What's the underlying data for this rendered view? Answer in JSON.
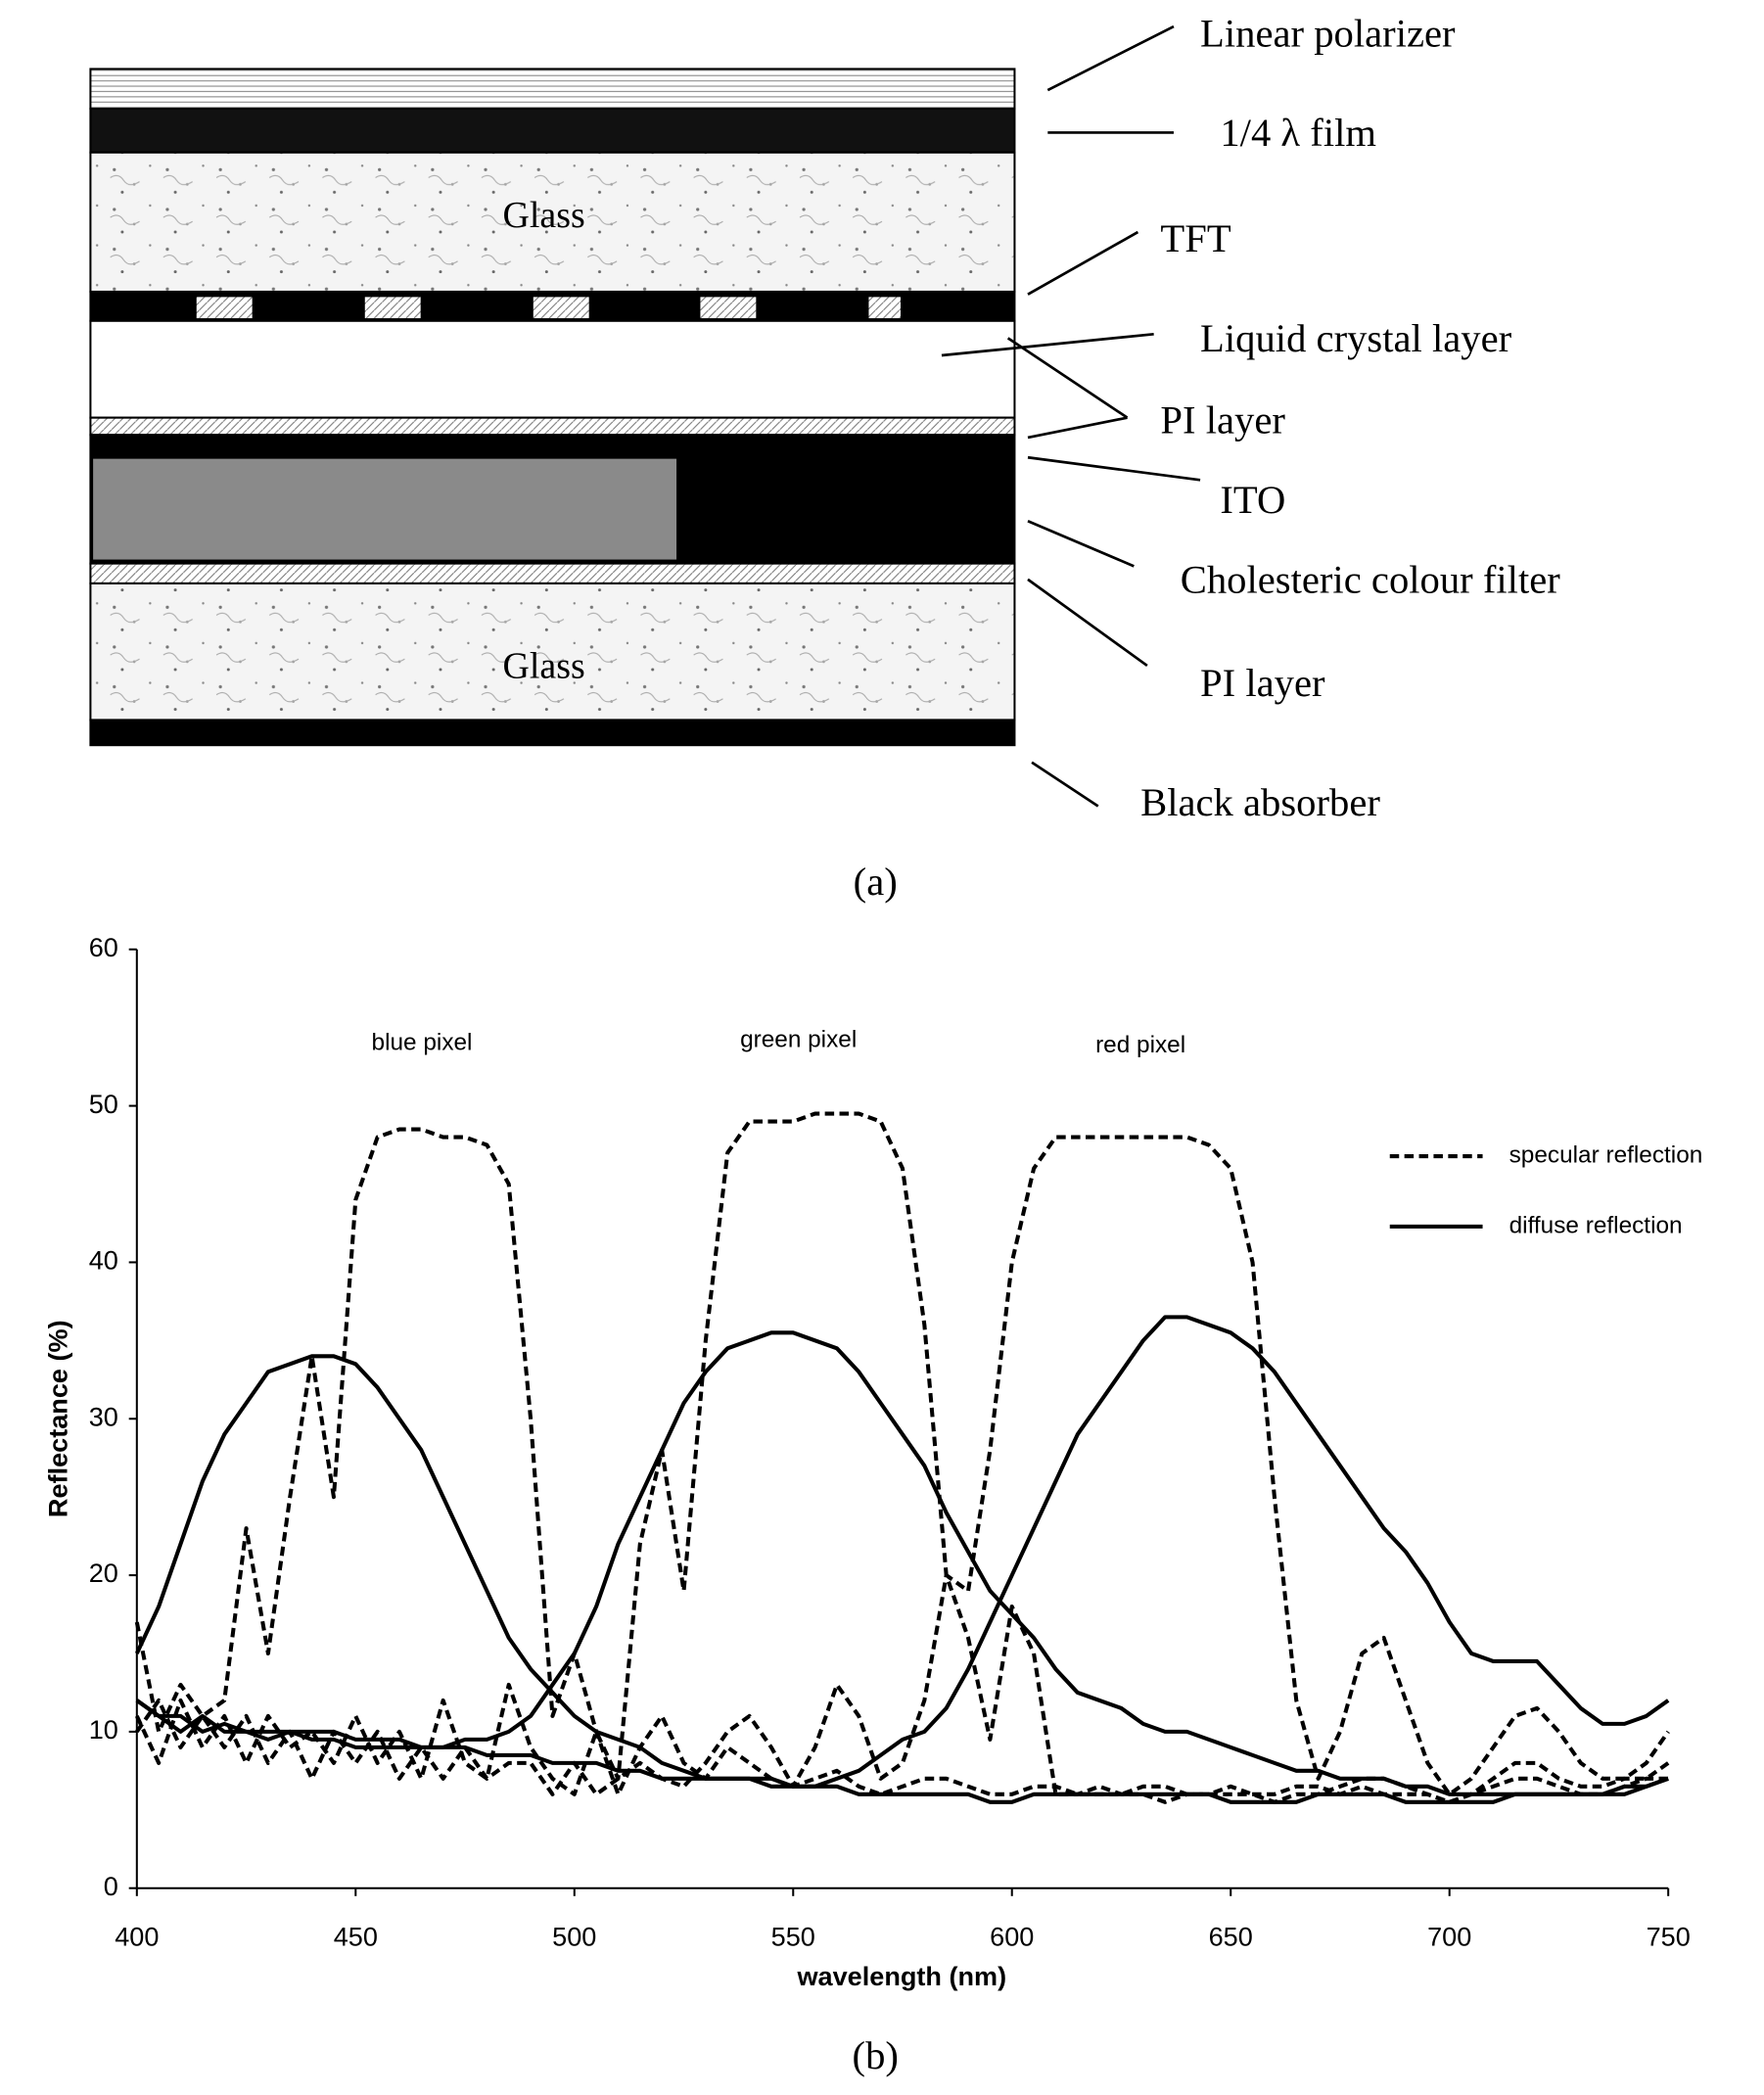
{
  "diagram": {
    "layers": [
      "Glass",
      "Glass"
    ],
    "labels": [
      "Linear polarizer",
      "1/4 λ film",
      "TFT",
      "Liquid crystal layer",
      "PI layer",
      "ITO",
      "Cholesteric colour filter",
      "PI layer",
      "Black  absorber"
    ],
    "caption": "(a)"
  },
  "chart_data": {
    "type": "line",
    "caption": "(b)",
    "x_label": "wavelength (nm)",
    "y_label": "Reflectance (%)",
    "annotations": [
      "blue pixel",
      "green  pixel",
      "red pixel"
    ],
    "xlim": [
      400,
      750
    ],
    "ylim": [
      0,
      60
    ],
    "xticks": [
      400,
      450,
      500,
      550,
      600,
      650,
      700,
      750
    ],
    "yticks": [
      0,
      10,
      20,
      30,
      40,
      50,
      60
    ],
    "grid": false,
    "x": [
      400,
      405,
      410,
      415,
      420,
      425,
      430,
      435,
      440,
      445,
      450,
      455,
      460,
      465,
      470,
      475,
      480,
      485,
      490,
      495,
      500,
      505,
      510,
      515,
      520,
      525,
      530,
      535,
      540,
      545,
      550,
      555,
      560,
      565,
      570,
      575,
      580,
      585,
      590,
      595,
      600,
      605,
      610,
      615,
      620,
      625,
      630,
      635,
      640,
      645,
      650,
      655,
      660,
      665,
      670,
      675,
      680,
      685,
      690,
      695,
      700,
      705,
      710,
      715,
      720,
      725,
      730,
      735,
      740,
      745,
      750
    ],
    "series": [
      {
        "name": "specular reflection",
        "dashed": true,
        "color": "#000000",
        "values": [
          10,
          12,
          9,
          11,
          12,
          23,
          15,
          25,
          34,
          25,
          44,
          48,
          48.5,
          48.5,
          48,
          48,
          47.5,
          45,
          30,
          11,
          15,
          10,
          6,
          9,
          11,
          8,
          7,
          9,
          8,
          7,
          6.5,
          7,
          7.5,
          6.5,
          6,
          6.5,
          7,
          7,
          6.5,
          6,
          6,
          6.5,
          6.5,
          6,
          6,
          6,
          6.5,
          6.5,
          6,
          6,
          6,
          6,
          6,
          6.5,
          6.5,
          6,
          6.5,
          6,
          6,
          6,
          5.5,
          6,
          6.5,
          7,
          7,
          6.5,
          6,
          6,
          6.5,
          7,
          7
        ]
      },
      {
        "name": "diffuse reflection",
        "dashed": false,
        "color": "#000000",
        "values": [
          15,
          18,
          22,
          26,
          29,
          31,
          33,
          33.5,
          34,
          34,
          33.5,
          32,
          30,
          28,
          25,
          22,
          19,
          16,
          14,
          12.5,
          11,
          10,
          9.5,
          9,
          8,
          7.5,
          7,
          7,
          7,
          7,
          6.5,
          6.5,
          6.5,
          6,
          6,
          6,
          6,
          6,
          6,
          5.5,
          5.5,
          6,
          6,
          6,
          6,
          6,
          6,
          6,
          6,
          6,
          5.5,
          5.5,
          5.5,
          5.5,
          6,
          6,
          6,
          6,
          5.5,
          5.5,
          5.5,
          5.5,
          5.5,
          6,
          6,
          6,
          6,
          6,
          6.5,
          6.5,
          7
        ]
      },
      {
        "dashed": true,
        "color": "#000000",
        "values": [
          11,
          8,
          12,
          9,
          11,
          8,
          11,
          9,
          10,
          8,
          11,
          8,
          10,
          7,
          12,
          8,
          7,
          13,
          9,
          7,
          6,
          10,
          7,
          22,
          28,
          19,
          35,
          47,
          49,
          49,
          49,
          49.5,
          49.5,
          49.5,
          49,
          46,
          36,
          20,
          16,
          9.5,
          18,
          15,
          6,
          6,
          6.5,
          6,
          6,
          5.5,
          6,
          6,
          6.5,
          6,
          5.5,
          6,
          6,
          6.5,
          7,
          7,
          6.5,
          6,
          5.5,
          6,
          7,
          8,
          8,
          7,
          6.5,
          6.5,
          7,
          7,
          8
        ]
      },
      {
        "dashed": false,
        "color": "#000000",
        "values": [
          12,
          11,
          10,
          11,
          10,
          10,
          9.5,
          10,
          9.5,
          9.5,
          9,
          9,
          9,
          9,
          9,
          9.5,
          9.5,
          10,
          11,
          13,
          15,
          18,
          22,
          25,
          28,
          31,
          33,
          34.5,
          35,
          35.5,
          35.5,
          35,
          34.5,
          33,
          31,
          29,
          27,
          24,
          21.5,
          19,
          17.5,
          16,
          14,
          12.5,
          12,
          11.5,
          10.5,
          10,
          10,
          9.5,
          9,
          8.5,
          8,
          7.5,
          7.5,
          7,
          7,
          7,
          6.5,
          6.5,
          6,
          6,
          6,
          6,
          6,
          6,
          6,
          6,
          6,
          6.5,
          7
        ]
      },
      {
        "dashed": true,
        "color": "#000000",
        "values": [
          17,
          10,
          13,
          11,
          9,
          11,
          8,
          10,
          7,
          10,
          8,
          10,
          7,
          9,
          7,
          9,
          7,
          8,
          8,
          6,
          8,
          6,
          7,
          8,
          7,
          6.5,
          8,
          10,
          11,
          9,
          6.5,
          9,
          13,
          11,
          7,
          8,
          12,
          20,
          19,
          28,
          40,
          46,
          48,
          48,
          48,
          48,
          48,
          48,
          48,
          47.5,
          46,
          40,
          25,
          12,
          7,
          10,
          15,
          16,
          12,
          8,
          6,
          7,
          9,
          11,
          11.5,
          10,
          8,
          7,
          7,
          8,
          10
        ]
      },
      {
        "dashed": false,
        "color": "#000000",
        "values": [
          12,
          11,
          11,
          10,
          10.5,
          10,
          10,
          10,
          10,
          10,
          9.5,
          9.5,
          9.5,
          9,
          9,
          9,
          8.5,
          8.5,
          8.5,
          8,
          8,
          8,
          7.5,
          7.5,
          7,
          7,
          7,
          7,
          7,
          6.5,
          6.5,
          6.5,
          7,
          7.5,
          8.5,
          9.5,
          10,
          11.5,
          14,
          17,
          20,
          23,
          26,
          29,
          31,
          33,
          35,
          36.5,
          36.5,
          36,
          35.5,
          34.5,
          33,
          31,
          29,
          27,
          25,
          23,
          21.5,
          19.5,
          17,
          15,
          14.5,
          14.5,
          14.5,
          13,
          11.5,
          10.5,
          10.5,
          11,
          12
        ]
      }
    ]
  }
}
